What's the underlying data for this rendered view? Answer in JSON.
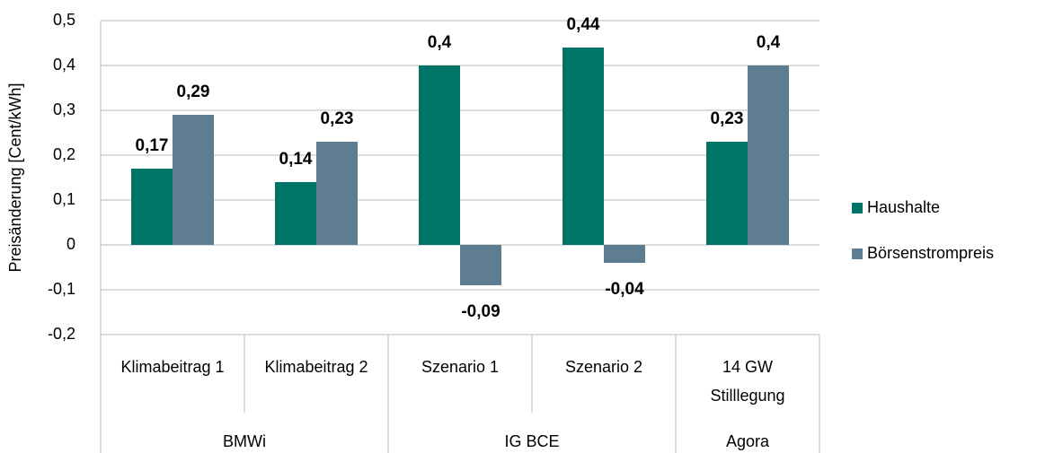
{
  "chart_data": {
    "type": "bar",
    "y_label": "Preisänderung [Cent/kWh]",
    "categories": [
      "Klimabeitrag 1",
      "Klimabeitrag 2",
      "Szenario 1",
      "Szenario 2",
      "14 GW\nStilllegung"
    ],
    "groups": [
      {
        "label": "BMWi",
        "span": 2
      },
      {
        "label": "IG BCE",
        "span": 2
      },
      {
        "label": "Agora",
        "span": 1
      }
    ],
    "series": [
      {
        "name": "Haushalte",
        "color": "#007466",
        "values": [
          0.17,
          0.14,
          0.4,
          0.44,
          0.23
        ],
        "value_labels": [
          "0,17",
          "0,14",
          "0,4",
          "0,44",
          "0,23"
        ]
      },
      {
        "name": "Börsenstrompreis",
        "color": "#5f7d91",
        "values": [
          0.29,
          0.23,
          -0.09,
          -0.04,
          0.4
        ],
        "value_labels": [
          "0,29",
          "0,23",
          "-0,09",
          "-0,04",
          "0,4"
        ]
      }
    ],
    "ylim": [
      -0.2,
      0.5
    ],
    "yticks": [
      {
        "value": -0.2,
        "label": "-0,2"
      },
      {
        "value": -0.1,
        "label": "-0,1"
      },
      0,
      {
        "value": 0.1,
        "label": "0,1"
      },
      {
        "value": 0.2,
        "label": "0,2"
      },
      {
        "value": 0.3,
        "label": "0,3"
      },
      {
        "value": 0.4,
        "label": "0,4"
      },
      {
        "value": 0.5,
        "label": "0,5"
      }
    ],
    "grid": true,
    "legend": "right"
  }
}
